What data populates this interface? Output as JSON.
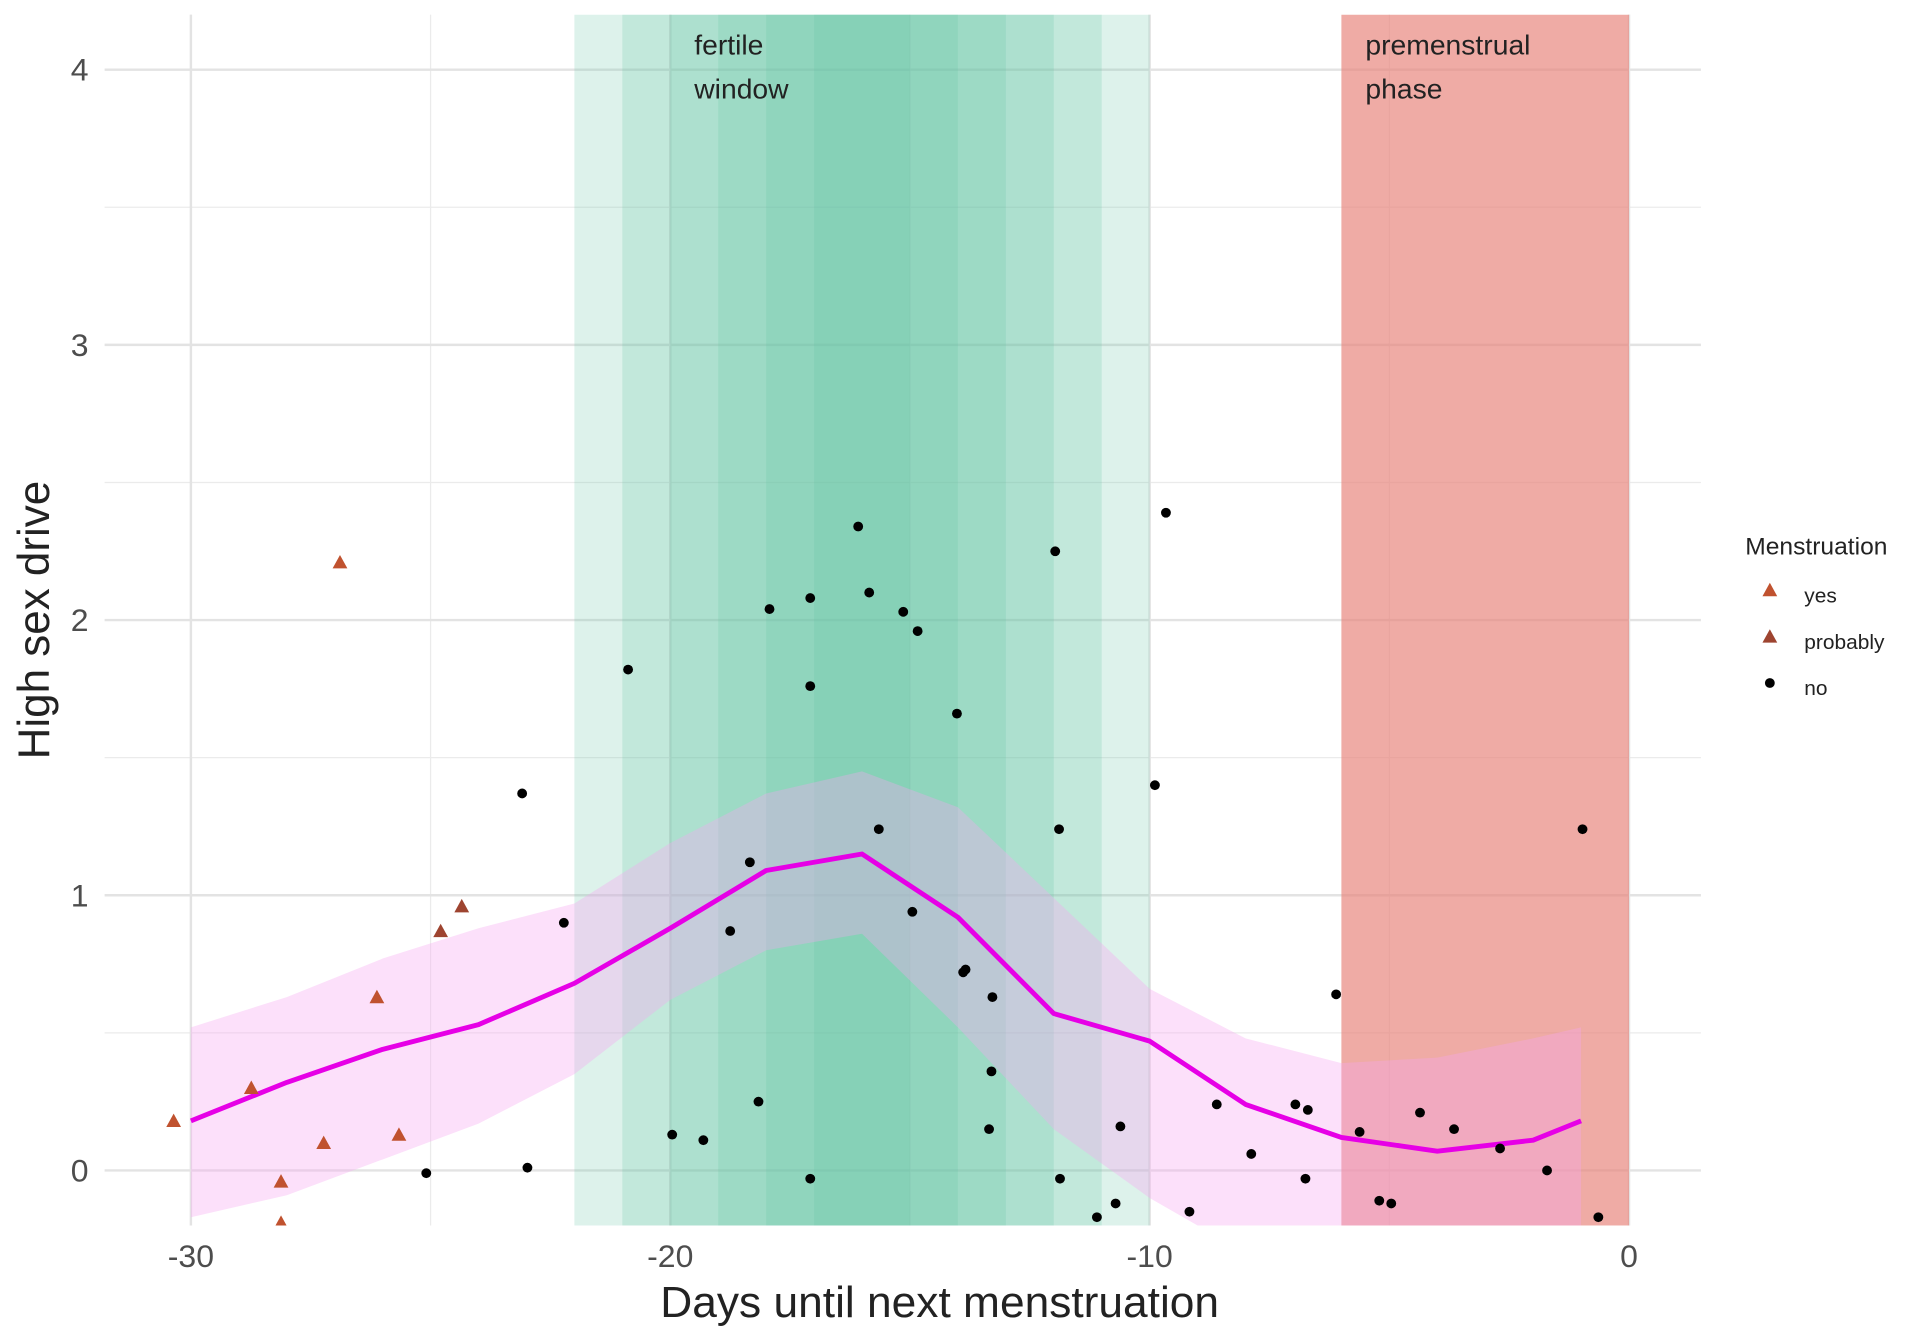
{
  "chart_data": {
    "type": "scatter",
    "x_label": "Days until next menstruation",
    "y_label": "High sex drive",
    "xlim": [
      -31.8,
      1.5
    ],
    "ylim": [
      -0.2,
      4.2
    ],
    "xticks": [
      -30,
      -20,
      -10,
      0
    ],
    "yticks": [
      0,
      1,
      2,
      3,
      4
    ],
    "grid": true,
    "legend_title": "Menstruation",
    "legend_position": "right",
    "regions": [
      {
        "xrange": [
          -22,
          -10
        ],
        "color": "#66c2a5"
      },
      {
        "xrange": [
          -21,
          -11
        ],
        "color": "#66c2a5"
      },
      {
        "xrange": [
          -20,
          -12
        ],
        "color": "#66c2a5"
      },
      {
        "xrange": [
          -19,
          -13
        ],
        "color": "#66c2a5"
      },
      {
        "xrange": [
          -18,
          -14
        ],
        "color": "#66c2a5"
      },
      {
        "xrange": [
          -17,
          -15
        ],
        "color": "#66c2a5"
      },
      {
        "xrange": [
          -6,
          0
        ],
        "color": "#e8837a"
      }
    ],
    "annotations": [
      {
        "lines": [
          "fertile",
          "window"
        ],
        "x": -19.5,
        "y": 4.1
      },
      {
        "lines": [
          "premenstrual",
          "phase"
        ],
        "x": -5.5,
        "y": 4.1
      }
    ],
    "series": [
      {
        "name": "yes",
        "color": "#c0522f",
        "marker": "triangle",
        "x": [
          -30.36,
          -28.74,
          -28.12,
          -28.12,
          -27.23,
          -26.89,
          -26.12,
          -25.66
        ],
        "values": [
          0.18,
          0.3,
          -0.04,
          -0.19,
          0.1,
          2.21,
          0.63,
          0.13
        ]
      },
      {
        "name": "probably",
        "color": "#9e4430",
        "marker": "triangle",
        "x": [
          -24.79,
          -24.35
        ],
        "values": [
          0.87,
          0.96
        ]
      },
      {
        "name": "no",
        "color": "#000000",
        "marker": "circle",
        "x": [
          -25.09,
          -23.09,
          -22.98,
          -22.22,
          -20.88,
          -19.96,
          -19.31,
          -18.75,
          -18.34,
          -18.16,
          -17.93,
          -17.08,
          -17.08,
          -17.08,
          -16.08,
          -15.85,
          -15.65,
          -15.14,
          -14.95,
          -14.84,
          -14.02,
          -13.89,
          -13.84,
          -13.35,
          -13.3,
          -13.28,
          -11.97,
          -11.89,
          -11.87,
          -11.1,
          -10.71,
          -10.61,
          -9.89,
          -9.66,
          -9.17,
          -8.6,
          -7.88,
          -6.96,
          -6.75,
          -6.7,
          -6.11,
          -5.62,
          -5.21,
          -4.96,
          -4.36,
          -3.65,
          -2.69,
          -1.71,
          -0.97,
          -0.64
        ],
        "values": [
          -0.01,
          1.37,
          0.01,
          0.9,
          1.82,
          0.13,
          0.11,
          0.87,
          1.12,
          0.25,
          2.04,
          2.08,
          1.76,
          -0.03,
          2.34,
          2.1,
          1.24,
          2.03,
          0.94,
          1.96,
          1.66,
          0.72,
          0.73,
          0.15,
          0.36,
          0.63,
          2.25,
          1.24,
          -0.03,
          -0.17,
          -0.12,
          0.16,
          1.4,
          2.39,
          -0.15,
          0.24,
          0.06,
          0.24,
          -0.03,
          0.22,
          0.64,
          0.14,
          -0.11,
          -0.12,
          0.21,
          0.15,
          0.08,
          0.0,
          1.24,
          -0.17
        ]
      }
    ],
    "smooth": {
      "color": "#e600e6",
      "band_color": "#f5a6f0",
      "x": [
        -30,
        -28,
        -26,
        -24,
        -22,
        -20,
        -18,
        -16,
        -14,
        -12,
        -10,
        -8,
        -6,
        -4,
        -2,
        -1
      ],
      "values": [
        0.18,
        0.32,
        0.44,
        0.53,
        0.68,
        0.88,
        1.09,
        1.15,
        0.92,
        0.57,
        0.47,
        0.24,
        0.12,
        0.07,
        0.11,
        0.18
      ],
      "upper": [
        0.52,
        0.63,
        0.77,
        0.88,
        0.97,
        1.19,
        1.37,
        1.45,
        1.32,
        0.99,
        0.66,
        0.48,
        0.39,
        0.41,
        0.48,
        0.52
      ],
      "lower": [
        -0.17,
        -0.09,
        0.04,
        0.17,
        0.35,
        0.62,
        0.8,
        0.86,
        0.52,
        0.15,
        -0.1,
        -0.3,
        -0.4,
        -0.45,
        -0.4,
        -0.4
      ]
    }
  }
}
